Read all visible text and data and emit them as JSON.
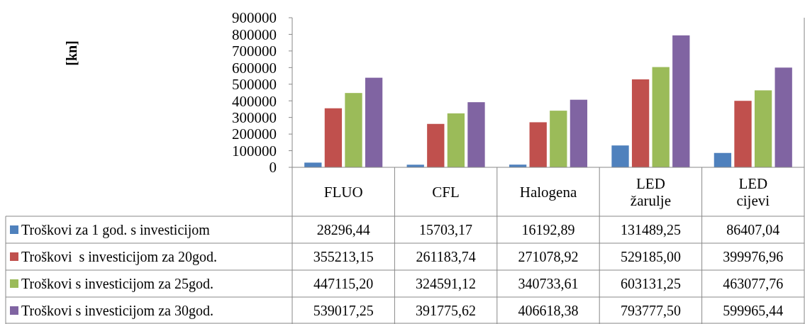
{
  "chart_data": {
    "type": "bar",
    "annotations": [
      "[kn]"
    ],
    "categories": [
      "FLUO",
      "CFL",
      "Halogena",
      "LED žarulje",
      "LED cijevi"
    ],
    "ylim": [
      0,
      900000
    ],
    "yticks": [
      0,
      100000,
      200000,
      300000,
      400000,
      500000,
      600000,
      700000,
      800000,
      900000
    ],
    "grid": false,
    "legend": "bottom left",
    "series": [
      {
        "name": "Troškovi za 1 god. s investicijom",
        "color": "#4f81bd",
        "values": [
          28296.44,
          15703.17,
          16192.89,
          131489.25,
          86407.04
        ],
        "value_labels": [
          "28296,44",
          "15703,17",
          "16192,89",
          "131489,25",
          "86407,04"
        ]
      },
      {
        "name": "Troškovi  s investicijom za 20god.",
        "color": "#c0504d",
        "values": [
          355213.15,
          261183.74,
          271078.92,
          529185.0,
          399976.96
        ],
        "value_labels": [
          "355213,15",
          "261183,74",
          "271078,92",
          "529185,00",
          "399976,96"
        ]
      },
      {
        "name": "Troškovi s investicijom za 25god.",
        "color": "#9bbb59",
        "values": [
          447115.2,
          324591.12,
          340733.61,
          603131.25,
          463077.76
        ],
        "value_labels": [
          "447115,20",
          "324591,12",
          "340733,61",
          "603131,25",
          "463077,76"
        ]
      },
      {
        "name": "Troškovi s investicijom za 30god.",
        "color": "#8064a2",
        "values": [
          539017.25,
          391775.62,
          406618.38,
          793777.5,
          599965.44
        ],
        "value_labels": [
          "539017,25",
          "391775,62",
          "406618,38",
          "793777,50",
          "599965,44"
        ]
      }
    ]
  }
}
